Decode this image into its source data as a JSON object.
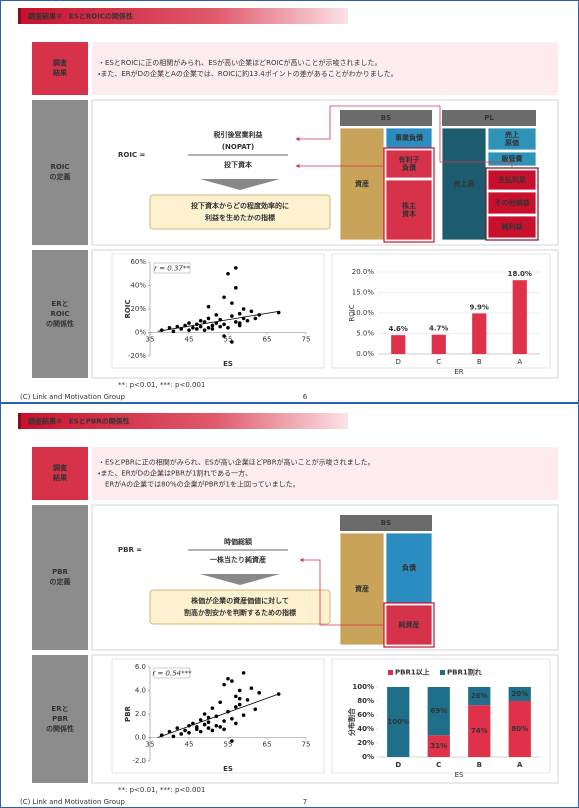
{
  "slides": [
    {
      "header": "調査結果②　ESとROICの関係性",
      "results": {
        "label": [
          "調査",
          "結果"
        ],
        "lines": [
          "・ESとROICに正の相関がみられ、ESが高い企業ほどROICが高いことが示唆されました。",
          "・また、ERがDの企業とAの企業では、ROICに約13.4ポイントの差があることがわかりました。"
        ]
      },
      "definition": {
        "label": [
          "ROIC",
          "の定義"
        ],
        "lhs": "ROIC =",
        "numerator": [
          "税引後営業利益",
          "(NOPAT)"
        ],
        "denominator": "投下資本",
        "note": [
          "投下資本からどの程度効率的に",
          "利益を生めたかの指標"
        ],
        "bs": {
          "title": "BS",
          "blocks": [
            [
              "資産"
            ],
            [
              "事業負債"
            ],
            [
              "有利子",
              "負債"
            ],
            [
              "株主",
              "資本"
            ]
          ]
        },
        "pl": {
          "title": "PL",
          "blocks": [
            [
              "売上高"
            ],
            [
              "売上",
              "原価"
            ],
            [
              "販管費"
            ],
            [
              "支払利息"
            ],
            [
              "その他損益"
            ],
            [
              "純利益"
            ]
          ]
        }
      },
      "relation": {
        "label": [
          "ERと",
          "ROIC",
          "の関係性"
        ],
        "scatter": {
          "type": "scatter",
          "color": "#000000",
          "x": [
            38,
            40,
            41,
            42,
            43,
            44,
            45,
            45,
            46,
            47,
            47,
            48,
            48,
            49,
            49,
            50,
            50,
            51,
            51,
            52,
            52,
            53,
            53,
            54,
            54,
            55,
            55,
            56,
            56,
            57,
            57,
            58,
            58,
            59,
            59,
            60,
            61,
            62,
            63,
            68,
            50,
            54,
            56,
            57,
            58
          ],
          "y": [
            2,
            4,
            1,
            5,
            3,
            6,
            2,
            8,
            4,
            3,
            7,
            5,
            10,
            2,
            9,
            4,
            12,
            6,
            3,
            15,
            8,
            5,
            11,
            30,
            7,
            50,
            4,
            14,
            -8,
            55,
            9,
            16,
            6,
            12,
            20,
            10,
            18,
            12,
            15,
            17,
            22,
            -3,
            25,
            38,
            8
          ],
          "xlim": [
            35,
            75
          ],
          "ylim": [
            -20,
            60
          ],
          "xticks": [
            35,
            45,
            55,
            65,
            75
          ],
          "yticks": [
            {
              "value": -20,
              "label": "-20%"
            },
            {
              "value": 0,
              "label": "0%"
            },
            {
              "value": 20,
              "label": "20%"
            },
            {
              "value": 40,
              "label": "40%"
            },
            {
              "value": 60,
              "label": "60%"
            }
          ],
          "xlabel": "ES",
          "ylabel": "ROIC",
          "annotation": "r = 0.37**",
          "trendline": {
            "x": [
              37,
              68
            ],
            "y": [
              1,
              18
            ]
          }
        },
        "chart": {
          "type": "bar",
          "color": "#e0314b",
          "grid": true,
          "categories": [
            "D",
            "C",
            "B",
            "A"
          ],
          "values": [
            4.6,
            4.7,
            9.9,
            18.0
          ],
          "value_labels": [
            "4.6%",
            "4.7%",
            "9.9%",
            "18.0%"
          ],
          "ylim": [
            0,
            20
          ],
          "yticks": [
            {
              "value": 0,
              "label": "0.0%"
            },
            {
              "value": 5,
              "label": "5.0%"
            },
            {
              "value": 10,
              "label": "10.0%"
            },
            {
              "value": 15,
              "label": "15.0%"
            },
            {
              "value": 20,
              "label": "20.0%"
            }
          ],
          "xlabel": "ER",
          "ylabel": "ROIC"
        },
        "footnote": "**: p<0.01, ***: p<0.001"
      },
      "footer": "(C) Link and Motivation Group",
      "page": "6"
    },
    {
      "header": "調査結果③　ESとPBRの関係性",
      "results": {
        "label": [
          "調査",
          "結果"
        ],
        "lines": [
          "・ESとPBRに正の相関がみられ、ESが高い企業ほどPBRが高いことが示唆されました。",
          "・また、ERがDの企業はPBRが1割れである一方、",
          "　ERがAの企業では80%の企業がPBRが1を上回っていました。"
        ]
      },
      "definition": {
        "label": [
          "PBR",
          "の定義"
        ],
        "lhs": "PBR =",
        "numerator": [
          "時価総額"
        ],
        "denominator": "一株当たり純資産",
        "note": [
          "株価が企業の資産価値に対して",
          "割高か割安かを判断するための指標"
        ],
        "bs": {
          "title": "BS",
          "blocks": [
            [
              "資産"
            ],
            [
              "負債"
            ],
            [
              "純資産"
            ]
          ]
        }
      },
      "relation": {
        "label": [
          "ERと",
          "PBR",
          "の関係性"
        ],
        "scatter": {
          "type": "scatter",
          "color": "#000000",
          "x": [
            38,
            40,
            41,
            42,
            43,
            44,
            45,
            45,
            46,
            47,
            47,
            48,
            48,
            49,
            49,
            50,
            50,
            51,
            51,
            52,
            52,
            53,
            53,
            54,
            54,
            55,
            55,
            56,
            56,
            57,
            57,
            58,
            58,
            59,
            59,
            60,
            61,
            62,
            63,
            68,
            50,
            54,
            56,
            57,
            58
          ],
          "y": [
            0.2,
            0.5,
            0.1,
            0.8,
            0.3,
            0.6,
            1.0,
            0.4,
            1.2,
            0.7,
            0.9,
            1.5,
            0.5,
            1.1,
            2.0,
            0.8,
            1.3,
            0.6,
            2.5,
            1.0,
            1.8,
            3.0,
            0.9,
            4.5,
            1.4,
            2.2,
            5.0,
            1.6,
            -0.3,
            3.5,
            1.2,
            2.8,
            4.0,
            1.9,
            5.5,
            3.2,
            4.2,
            2.4,
            3.8,
            3.7,
            1.7,
            0.7,
            4.8,
            2.6,
            3.3
          ],
          "xlim": [
            35,
            75
          ],
          "ylim": [
            -2,
            6
          ],
          "xticks": [
            35,
            45,
            55,
            65,
            75
          ],
          "yticks": [
            {
              "value": -2,
              "label": "-2.0"
            },
            {
              "value": 0,
              "label": "0.0"
            },
            {
              "value": 2,
              "label": "2.0"
            },
            {
              "value": 4,
              "label": "4.0"
            },
            {
              "value": 6,
              "label": "6.0"
            }
          ],
          "xlabel": "ES",
          "ylabel": "PBR",
          "annotation": "r = 0.54***",
          "trendline": {
            "x": [
              37,
              68
            ],
            "y": [
              0,
              3.7
            ]
          }
        },
        "chart": {
          "type": "stacked_bar",
          "categories": [
            "D",
            "C",
            "B",
            "A"
          ],
          "series": [
            {
              "name": "PBR1以上",
              "color": "#e0314b",
              "values": [
                0,
                31,
                74,
                80
              ],
              "value_labels": [
                null,
                "31%",
                "74%",
                "80%"
              ]
            },
            {
              "name": "PBR1割れ",
              "color": "#1f6f8b",
              "values": [
                100,
                69,
                26,
                20
              ],
              "value_labels": [
                "100%",
                "69%",
                "26%",
                "20%"
              ]
            }
          ],
          "ylim": [
            0,
            100
          ],
          "yticks": [
            {
              "value": 0,
              "label": "0%"
            },
            {
              "value": 20,
              "label": "20%"
            },
            {
              "value": 40,
              "label": "40%"
            },
            {
              "value": 60,
              "label": "60%"
            },
            {
              "value": 80,
              "label": "80%"
            },
            {
              "value": 100,
              "label": "100%"
            }
          ],
          "xlabel": "ES",
          "ylabel": "分布割合"
        },
        "footnote": "**: p<0.01, ***: p<0.001"
      },
      "footer": "(C) Link and Motivation Group",
      "page": "7"
    }
  ]
}
